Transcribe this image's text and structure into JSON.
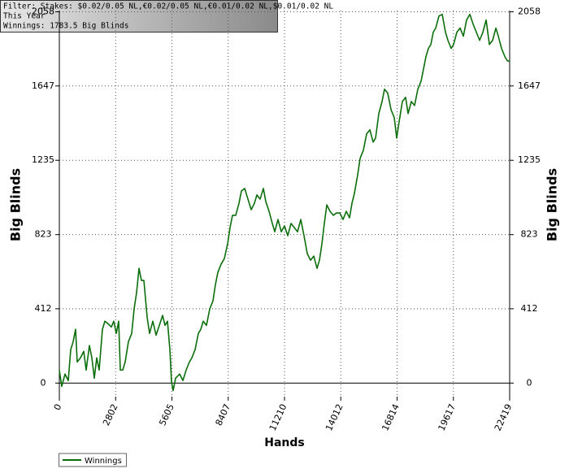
{
  "chart_data": {
    "type": "line",
    "annotations": [
      "Filter: Stakes: $0.02/0.05 NL,€0.02/0.05 NL,€0.01/0.02 NL,$0.01/0.02 NL",
      "This Year",
      "Winnings: 1783.5 Big Blinds"
    ],
    "xlabel": "Hands",
    "ylabel": "Big Blinds",
    "y2label": "Big Blinds",
    "xlim": [
      0,
      22419
    ],
    "xticks": [
      0,
      2802,
      5605,
      8407,
      11210,
      14012,
      16814,
      19617,
      22419
    ],
    "ylim": [
      -75,
      2065
    ],
    "yticks": [
      0,
      412,
      823,
      1235,
      1647,
      2058
    ],
    "y2lim": [
      -75,
      2065
    ],
    "y2ticks": [
      0,
      412,
      823,
      1235,
      1647,
      2058
    ],
    "grid": true,
    "legend": "bottom-left",
    "x": [
      0,
      121,
      283,
      445,
      567,
      688,
      809,
      890,
      1052,
      1214,
      1336,
      1497,
      1619,
      1740,
      1862,
      1983,
      2145,
      2266,
      2428,
      2590,
      2711,
      2833,
      2954,
      3035,
      3157,
      3278,
      3440,
      3602,
      3723,
      3845,
      3966,
      4087,
      4209,
      4371,
      4492,
      4654,
      4816,
      4978,
      5140,
      5261,
      5383,
      5504,
      5585,
      5666,
      5787,
      5990,
      6151,
      6313,
      6475,
      6597,
      6758,
      6920,
      7042,
      7163,
      7325,
      7487,
      7649,
      7770,
      7892,
      8054,
      8215,
      8377,
      8499,
      8620,
      8782,
      8944,
      9065,
      9227,
      9389,
      9551,
      9713,
      9834,
      9996,
      10158,
      10279,
      10441,
      10603,
      10725,
      10886,
      11048,
      11210,
      11372,
      11534,
      11696,
      11858,
      12020,
      12181,
      12343,
      12505,
      12667,
      12829,
      12950,
      13072,
      13193,
      13315,
      13477,
      13638,
      13800,
      13962,
      14124,
      14286,
      14448,
      14569,
      14691,
      14853,
      14974,
      15136,
      15298,
      15460,
      15622,
      15743,
      15905,
      16067,
      16188,
      16350,
      16512,
      16674,
      16795,
      16916,
      17078,
      17240,
      17362,
      17524,
      17685,
      17847,
      18009,
      18131,
      18252,
      18373,
      18495,
      18616,
      18738,
      18899,
      19061,
      19223,
      19345,
      19507,
      19628,
      19790,
      19952,
      20114,
      20276,
      20437,
      20599,
      20761,
      20923,
      21085,
      21247,
      21409,
      21571,
      21733,
      21854,
      22016,
      22178,
      22300,
      22419
    ],
    "series": [
      {
        "name": "Winnings",
        "color": "#0b6e0b",
        "values": [
          72,
          -18,
          50,
          14,
          185,
          230,
          298,
          117,
          140,
          176,
          72,
          208,
          140,
          27,
          140,
          72,
          298,
          343,
          329,
          311,
          343,
          275,
          343,
          72,
          72,
          117,
          230,
          275,
          411,
          501,
          636,
          569,
          569,
          366,
          275,
          343,
          266,
          320,
          375,
          320,
          343,
          185,
          5,
          -41,
          27,
          50,
          14,
          72,
          117,
          140,
          185,
          275,
          298,
          343,
          320,
          411,
          456,
          546,
          614,
          659,
          690,
          772,
          862,
          930,
          930,
          997,
          1065,
          1079,
          1020,
          961,
          997,
          1043,
          1020,
          1079,
          1006,
          952,
          885,
          839,
          907,
          839,
          871,
          817,
          885,
          862,
          839,
          907,
          817,
          718,
          681,
          704,
          636,
          681,
          772,
          885,
          988,
          952,
          930,
          943,
          943,
          907,
          952,
          916,
          997,
          1052,
          1155,
          1246,
          1291,
          1381,
          1404,
          1336,
          1358,
          1494,
          1561,
          1629,
          1607,
          1516,
          1471,
          1358,
          1449,
          1561,
          1584,
          1494,
          1561,
          1539,
          1629,
          1674,
          1742,
          1810,
          1855,
          1877,
          1945,
          1968,
          2035,
          2044,
          1945,
          1900,
          1855,
          1877,
          1945,
          1968,
          1923,
          2013,
          2044,
          1990,
          1945,
          1900,
          1945,
          2013,
          1877,
          1900,
          1968,
          1923,
          1855,
          1810,
          1787,
          1783.5
        ]
      }
    ]
  }
}
